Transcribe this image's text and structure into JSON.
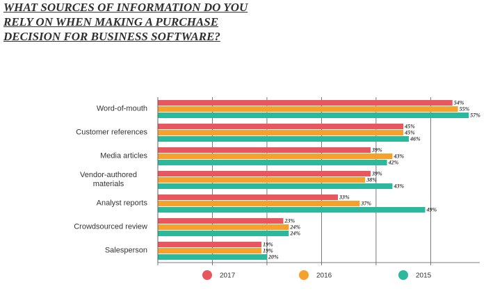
{
  "chart_data": {
    "type": "bar",
    "orientation": "horizontal",
    "title": "WHAT SOURCES OF INFORMATION DO YOU RELY ON WHEN MAKING A PURCHASE DECISION FOR BUSINESS SOFTWARE?",
    "categories": [
      "Word-of-mouth",
      "Customer references",
      "Media articles",
      "Vendor-authored materials",
      "Analyst reports",
      "Crowdsourced review",
      "Salesperson"
    ],
    "series": [
      {
        "name": "2017",
        "color": "#e8565f",
        "values": [
          54,
          45,
          39,
          39,
          33,
          23,
          19
        ],
        "value_labels": [
          "54%",
          "45%",
          "39%",
          "39%",
          "33%",
          "23%",
          "19%"
        ]
      },
      {
        "name": "2016",
        "color": "#f6a22a",
        "values": [
          55,
          45,
          43,
          38,
          37,
          24,
          19
        ],
        "value_labels": [
          "55%",
          "45%",
          "43%",
          "38%",
          "37%",
          "24%",
          "19%"
        ]
      },
      {
        "name": "2015",
        "color": "#2bb89c",
        "values": [
          57,
          46,
          42,
          43,
          49,
          24,
          20
        ],
        "value_labels": [
          "57%",
          "46%",
          "42%",
          "43%",
          "49%",
          "24%",
          "20%"
        ]
      }
    ],
    "xlim": [
      0,
      59
    ],
    "xticks": [
      0,
      10,
      20,
      30,
      40,
      50
    ],
    "grid": true,
    "legend": "bottom"
  }
}
